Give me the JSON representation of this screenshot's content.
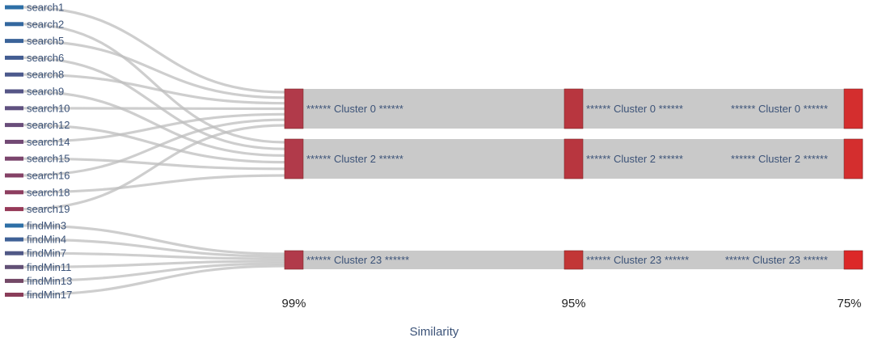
{
  "chart_data": {
    "type": "sankey",
    "xlabel": "Similarity",
    "levels": [
      "99%",
      "95%",
      "75%"
    ],
    "leaves": [
      {
        "name": "search1",
        "cluster": "****** Cluster 0 ******",
        "color": "#2d6fa6"
      },
      {
        "name": "search2",
        "cluster": "****** Cluster 2 ******",
        "color": "#33689f"
      },
      {
        "name": "search5",
        "cluster": "****** Cluster 0 ******",
        "color": "#3a6399"
      },
      {
        "name": "search6",
        "cluster": "****** Cluster 2 ******",
        "color": "#435d92"
      },
      {
        "name": "search8",
        "cluster": "****** Cluster 0 ******",
        "color": "#4b598c"
      },
      {
        "name": "search9",
        "cluster": "****** Cluster 2 ******",
        "color": "#555586"
      },
      {
        "name": "search10",
        "cluster": "****** Cluster 0 ******",
        "color": "#5f5180"
      },
      {
        "name": "search12",
        "cluster": "****** Cluster 2 ******",
        "color": "#694d7a"
      },
      {
        "name": "search14",
        "cluster": "****** Cluster 0 ******",
        "color": "#724974"
      },
      {
        "name": "search15",
        "cluster": "****** Cluster 2 ******",
        "color": "#7b456d"
      },
      {
        "name": "search16",
        "cluster": "****** Cluster 0 ******",
        "color": "#844166"
      },
      {
        "name": "search18",
        "cluster": "****** Cluster 2 ******",
        "color": "#8d3d5f"
      },
      {
        "name": "search19",
        "cluster": "****** Cluster 0 ******",
        "color": "#963958"
      },
      {
        "name": "findMin3",
        "cluster": "****** Cluster 23 ******",
        "color": "#2d6fa6"
      },
      {
        "name": "findMin4",
        "cluster": "****** Cluster 23 ******",
        "color": "#3f6196"
      },
      {
        "name": "findMin7",
        "cluster": "****** Cluster 23 ******",
        "color": "#505886"
      },
      {
        "name": "findMin11",
        "cluster": "****** Cluster 23 ******",
        "color": "#625076"
      },
      {
        "name": "findMin13",
        "cluster": "****** Cluster 23 ******",
        "color": "#734866"
      },
      {
        "name": "findMin17",
        "cluster": "****** Cluster 23 ******",
        "color": "#8a3d5a"
      }
    ],
    "clusters": [
      {
        "label": "****** Cluster 0 ******",
        "colors": [
          "#b13a4a",
          "#b8363f",
          "#d42e2e"
        ]
      },
      {
        "label": "****** Cluster 2 ******",
        "colors": [
          "#b13a4a",
          "#b8363f",
          "#d42e2e"
        ]
      },
      {
        "label": "****** Cluster 23 ******",
        "colors": [
          "#b13a4a",
          "#c23636",
          "#dc2828"
        ]
      }
    ]
  }
}
